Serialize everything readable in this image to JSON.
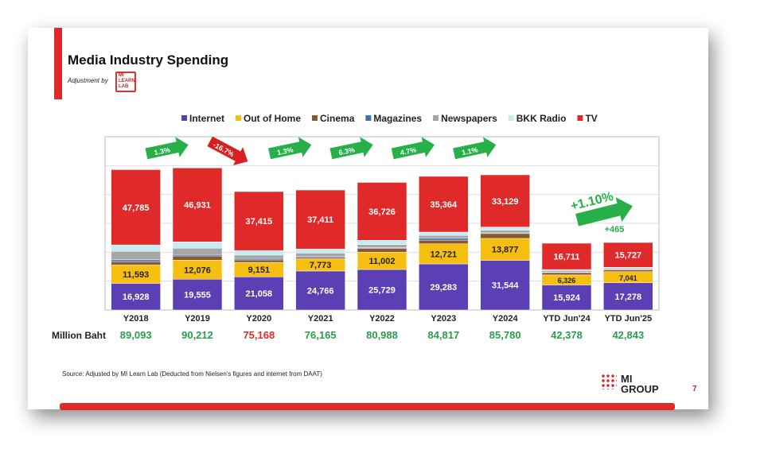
{
  "slide": {
    "title": "Media Industry Spending",
    "adjustment": "Adjustment by",
    "logo_text": "MI LEARN LAB",
    "source": "Source: Adjusted by MI Learn Lab (Deducted  from Nielsen's figures and internet from DAAT)",
    "brand": "MI GROUP",
    "page": "7"
  },
  "chart_data": {
    "type": "bar",
    "stacked": true,
    "categories": [
      "Y2018",
      "Y2019",
      "Y2020",
      "Y2021",
      "Y2022",
      "Y2023",
      "Y2024",
      "YTD Jun'24",
      "YTD Jun'25"
    ],
    "ylim": [
      0,
      110000
    ],
    "grid": true,
    "legend_position": "top",
    "series": [
      {
        "name": "Internet",
        "color": "#5b3fb5",
        "values": [
          16928,
          19555,
          21058,
          24766,
          25729,
          29283,
          31544,
          15924,
          17278
        ]
      },
      {
        "name": "Out of Home",
        "color": "#f6be10",
        "values": [
          11593,
          12076,
          9151,
          7773,
          11002,
          12721,
          13877,
          6326,
          7041
        ]
      },
      {
        "name": "Cinema",
        "color": "#8a5a2b",
        "values": [
          2218,
          2691,
          1595,
          1050,
          2319,
          2366,
          3093,
          1500,
          1200
        ]
      },
      {
        "name": "Magazines",
        "color": "#3f6fb0",
        "values": [
          1120,
          856,
          951,
          580,
          515,
          1157,
          485,
          300,
          250
        ]
      },
      {
        "name": "Newspapers",
        "color": "#a6a6a6",
        "values": [
          5368,
          4078,
          2100,
          1985,
          1931,
          1851,
          1602,
          1000,
          800
        ]
      },
      {
        "name": "BKK Radio",
        "color": "#c6ecf2",
        "values": [
          4081,
          4025,
          2898,
          2600,
          2766,
          2075,
          2050,
          617,
          547
        ]
      },
      {
        "name": "TV",
        "color": "#e02a2a",
        "values": [
          47785,
          46931,
          37415,
          37411,
          36726,
          35364,
          33129,
          16711,
          15727
        ]
      }
    ],
    "labeled_series": {
      "TV": [
        true,
        true,
        true,
        true,
        true,
        true,
        true,
        true,
        true
      ],
      "Out of Home": [
        true,
        true,
        true,
        true,
        true,
        true,
        true,
        true,
        true
      ],
      "Internet": [
        true,
        true,
        true,
        true,
        true,
        true,
        true,
        true,
        true
      ]
    },
    "totals_label": "Million Baht",
    "totals": [
      "89,093",
      "90,212",
      "75,168",
      "76,165",
      "80,988",
      "84,817",
      "85,780",
      "42,378",
      "42,843"
    ],
    "total_colors": [
      "#2a9d4e",
      "#2a9d4e",
      "#e02a2a",
      "#2a9d4e",
      "#2a9d4e",
      "#2a9d4e",
      "#2a9d4e",
      "#2a9d4e",
      "#2a9d4e"
    ],
    "growth_annotations": [
      "1.3%",
      "-16.7%",
      "1.3%",
      "6.3%",
      "4.7%",
      "1.1%"
    ],
    "ytd_growth": "+1.10%",
    "ytd_growth_abs": "+465"
  }
}
